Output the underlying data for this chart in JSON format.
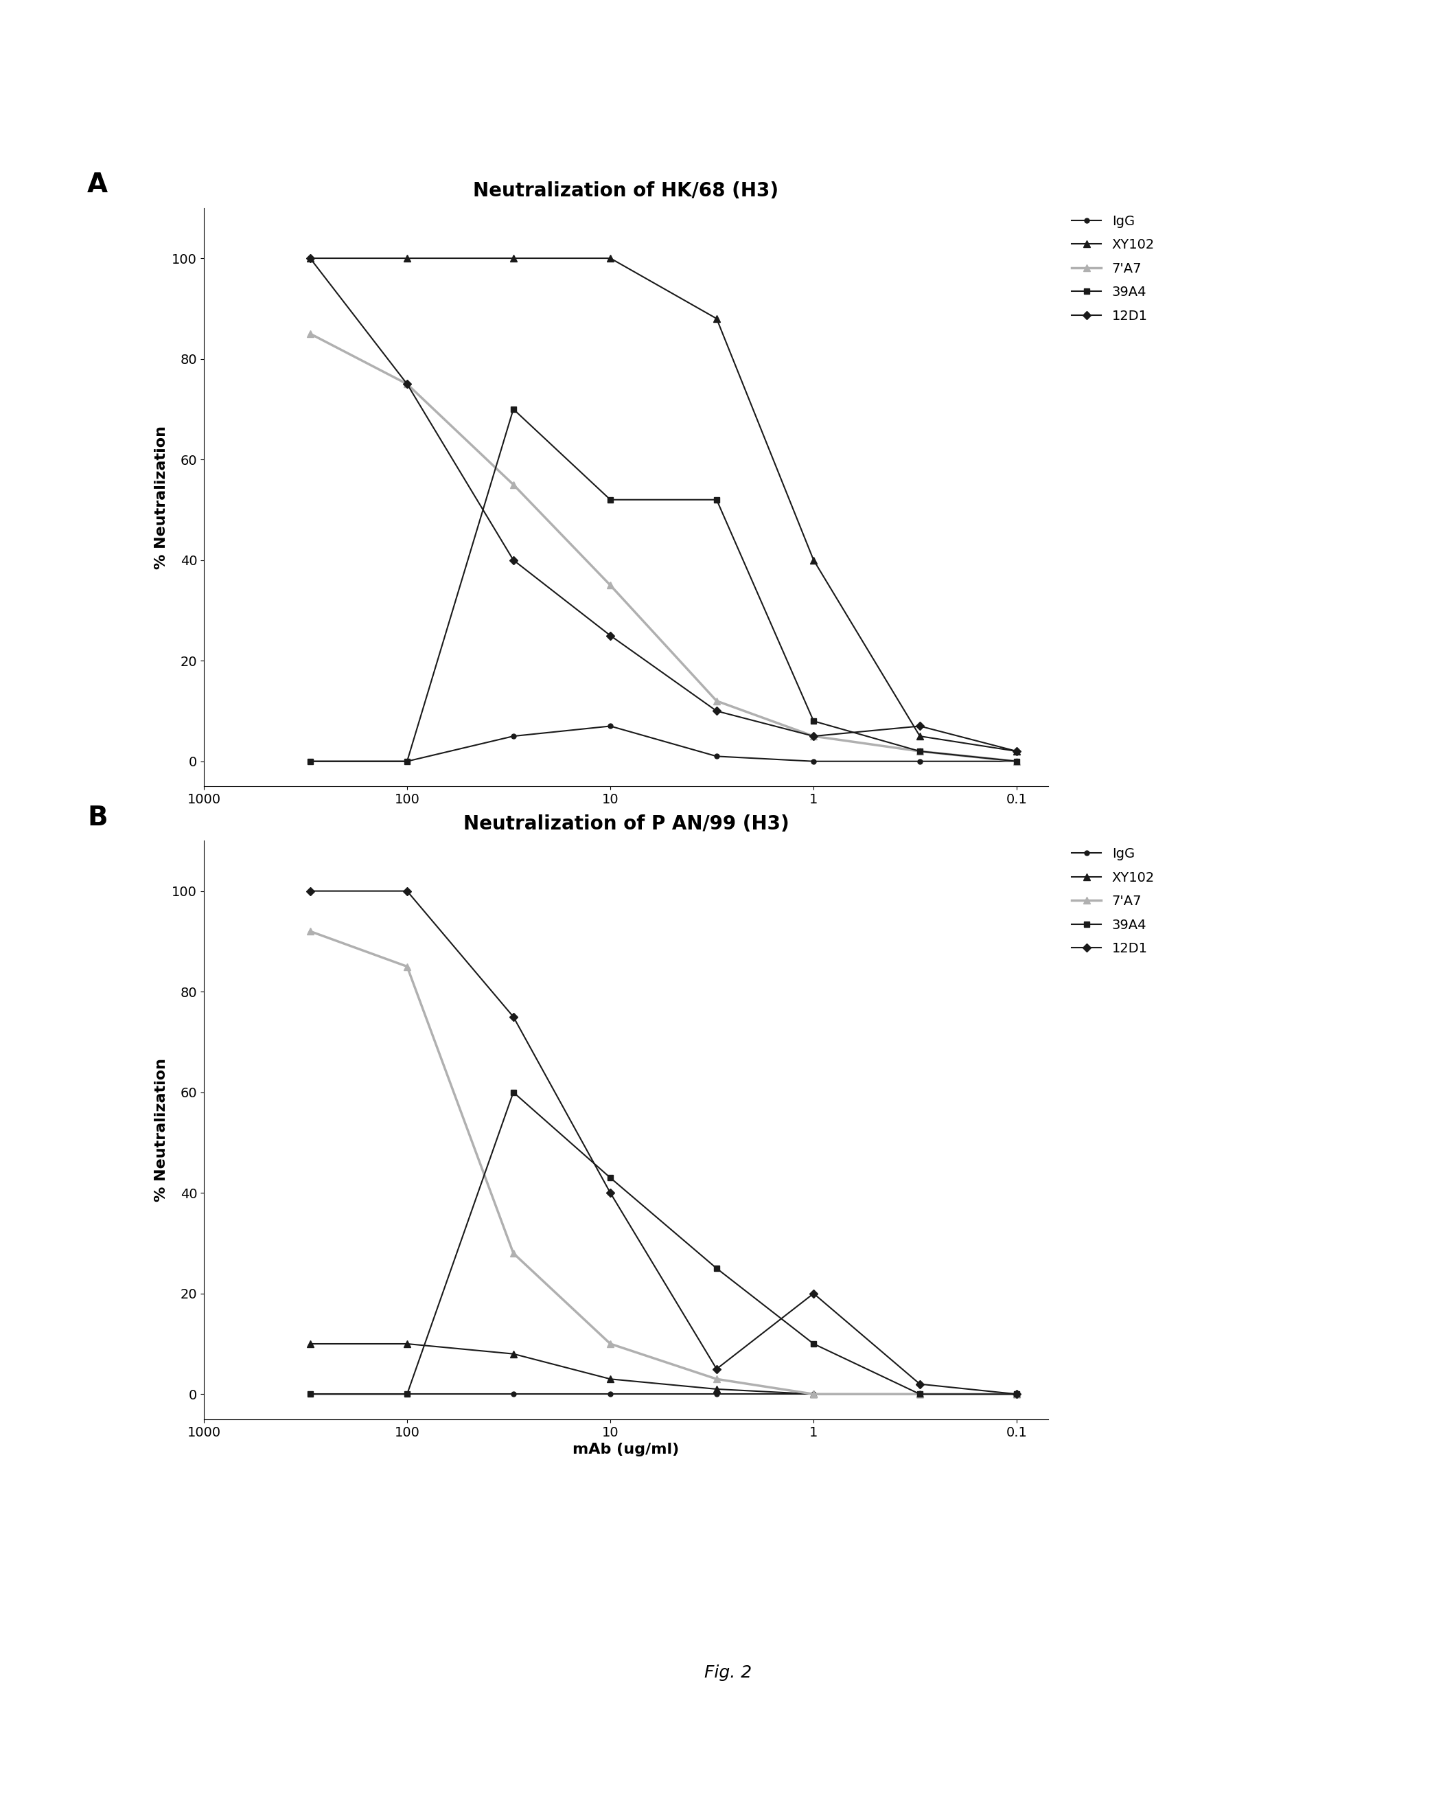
{
  "title_A": "Neutralization of HK/68 (H3)",
  "title_B": "Neutralization of P AN/99 (H3)",
  "xlabel": "mAb (ug/ml)",
  "ylabel": "% Neutralization",
  "fig_label": "Fig. 2",
  "panel_A_label": "A",
  "panel_B_label": "B",
  "series": [
    {
      "name": "IgG",
      "color": "#1a1a1a",
      "marker": "o",
      "markersize": 5,
      "linewidth": 1.5,
      "A_x": [
        300,
        100,
        30,
        10,
        3,
        1,
        0.3,
        0.1
      ],
      "A_y": [
        0,
        0,
        5,
        7,
        1,
        0,
        0,
        0
      ],
      "B_x": [
        300,
        100,
        30,
        10,
        3,
        1,
        0.3,
        0.1
      ],
      "B_y": [
        0,
        0,
        0,
        0,
        0,
        0,
        0,
        0
      ]
    },
    {
      "name": "XY102",
      "color": "#1a1a1a",
      "marker": "^",
      "markersize": 7,
      "linewidth": 1.5,
      "A_x": [
        300,
        100,
        30,
        10,
        3,
        1,
        0.3,
        0.1
      ],
      "A_y": [
        100,
        100,
        100,
        100,
        88,
        40,
        5,
        2
      ],
      "B_x": [
        300,
        100,
        30,
        10,
        3,
        1,
        0.3,
        0.1
      ],
      "B_y": [
        10,
        10,
        8,
        3,
        1,
        0,
        0,
        0
      ]
    },
    {
      "name": "7'A7",
      "color": "#b0b0b0",
      "marker": "^",
      "markersize": 7,
      "linewidth": 2.5,
      "A_x": [
        300,
        100,
        30,
        10,
        3,
        1,
        0.3,
        0.1
      ],
      "A_y": [
        85,
        75,
        55,
        35,
        12,
        5,
        2,
        0
      ],
      "B_x": [
        300,
        100,
        30,
        10,
        3,
        1,
        0.3,
        0.1
      ],
      "B_y": [
        92,
        85,
        28,
        10,
        3,
        0,
        0,
        0
      ]
    },
    {
      "name": "39A4",
      "color": "#1a1a1a",
      "marker": "s",
      "markersize": 6,
      "linewidth": 1.5,
      "A_x": [
        300,
        100,
        30,
        10,
        3,
        1,
        0.3,
        0.1
      ],
      "A_y": [
        0,
        0,
        70,
        52,
        52,
        8,
        2,
        0
      ],
      "B_x": [
        300,
        100,
        30,
        10,
        3,
        1,
        0.3,
        0.1
      ],
      "B_y": [
        0,
        0,
        60,
        43,
        25,
        10,
        0,
        0
      ]
    },
    {
      "name": "12D1",
      "color": "#1a1a1a",
      "marker": "D",
      "markersize": 6,
      "linewidth": 1.5,
      "A_x": [
        300,
        100,
        30,
        10,
        3,
        1,
        0.3,
        0.1
      ],
      "A_y": [
        100,
        75,
        40,
        25,
        10,
        5,
        7,
        2
      ],
      "B_x": [
        300,
        100,
        30,
        10,
        3,
        1,
        0.3,
        0.1
      ],
      "B_y": [
        100,
        100,
        75,
        40,
        5,
        20,
        2,
        0
      ]
    }
  ],
  "xlim_left": 1000,
  "xlim_right": 0.07,
  "ylim": [
    -5,
    110
  ],
  "yticks": [
    0,
    20,
    40,
    60,
    80,
    100
  ],
  "xticks": [
    1000,
    100,
    10,
    1,
    0.1
  ],
  "background_color": "#ffffff",
  "title_fontsize": 20,
  "label_fontsize": 16,
  "tick_fontsize": 14,
  "legend_fontsize": 14
}
